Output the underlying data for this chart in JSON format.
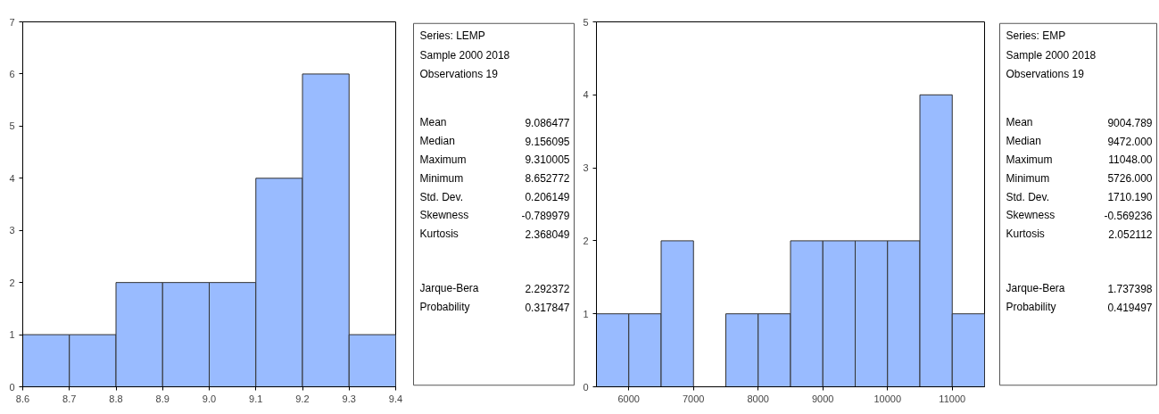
{
  "chart_data": [
    {
      "type": "histogram",
      "bins": [
        8.6,
        8.7,
        8.8,
        8.9,
        9.0,
        9.1,
        9.2,
        9.3,
        9.4
      ],
      "values": [
        1,
        1,
        2,
        2,
        2,
        4,
        6,
        1
      ],
      "color": "#99bbff",
      "xlim": [
        8.6,
        9.4
      ],
      "xticks": [
        {
          "value": 8.6,
          "label": "8.6"
        },
        {
          "value": 8.7,
          "label": "8.7"
        },
        {
          "value": 8.8,
          "label": "8.8"
        },
        {
          "value": 8.9,
          "label": "8.9"
        },
        {
          "value": 9.0,
          "label": "9.0"
        },
        {
          "value": 9.1,
          "label": "9.1"
        },
        {
          "value": 9.2,
          "label": "9.2"
        },
        {
          "value": 9.3,
          "label": "9.3"
        },
        {
          "value": 9.4,
          "label": "9.4"
        }
      ],
      "ylim": [
        0,
        7
      ],
      "yticks": [
        0,
        1,
        2,
        3,
        4,
        5,
        6,
        7
      ],
      "grid": false
    },
    {
      "type": "other",
      "annotations": [
        "Series: LEMP",
        "Sample 2000 2018",
        "Observations 19"
      ],
      "categories": [
        "Mean",
        "Median",
        "Maximum",
        "Minimum",
        "Std. Dev.",
        "Skewness",
        "Kurtosis",
        "Jarque-Bera",
        "Probability"
      ],
      "value_labels": [
        "9.086477",
        "9.156095",
        "9.310005",
        "8.652772",
        "0.206149",
        "-0.789979",
        "2.368049",
        "2.292372",
        "0.317847"
      ]
    },
    {
      "type": "histogram",
      "bins": [
        5500,
        6000,
        6500,
        7000,
        7500,
        8000,
        8500,
        9000,
        9500,
        10000,
        10500,
        11000,
        11500
      ],
      "values": [
        1,
        1,
        2,
        0,
        1,
        1,
        2,
        2,
        2,
        2,
        4,
        1
      ],
      "color": "#99bbff",
      "xlim": [
        5500,
        11500
      ],
      "xticks": [
        6000,
        7000,
        8000,
        9000,
        10000,
        11000
      ],
      "ylim": [
        0,
        5
      ],
      "yticks": [
        0,
        1,
        2,
        3,
        4,
        5
      ],
      "grid": false
    },
    {
      "type": "other",
      "annotations": [
        "Series: EMP",
        "Sample 2000 2018",
        "Observations 19"
      ],
      "categories": [
        "Mean",
        "Median",
        "Maximum",
        "Minimum",
        "Std. Dev.",
        "Skewness",
        "Kurtosis",
        "Jarque-Bera",
        "Probability"
      ],
      "value_labels": [
        "9004.789",
        "9472.000",
        "11048.00",
        "5726.000",
        "1710.190",
        "-0.569236",
        "2.052112",
        "1.737398",
        "0.419497"
      ]
    }
  ]
}
